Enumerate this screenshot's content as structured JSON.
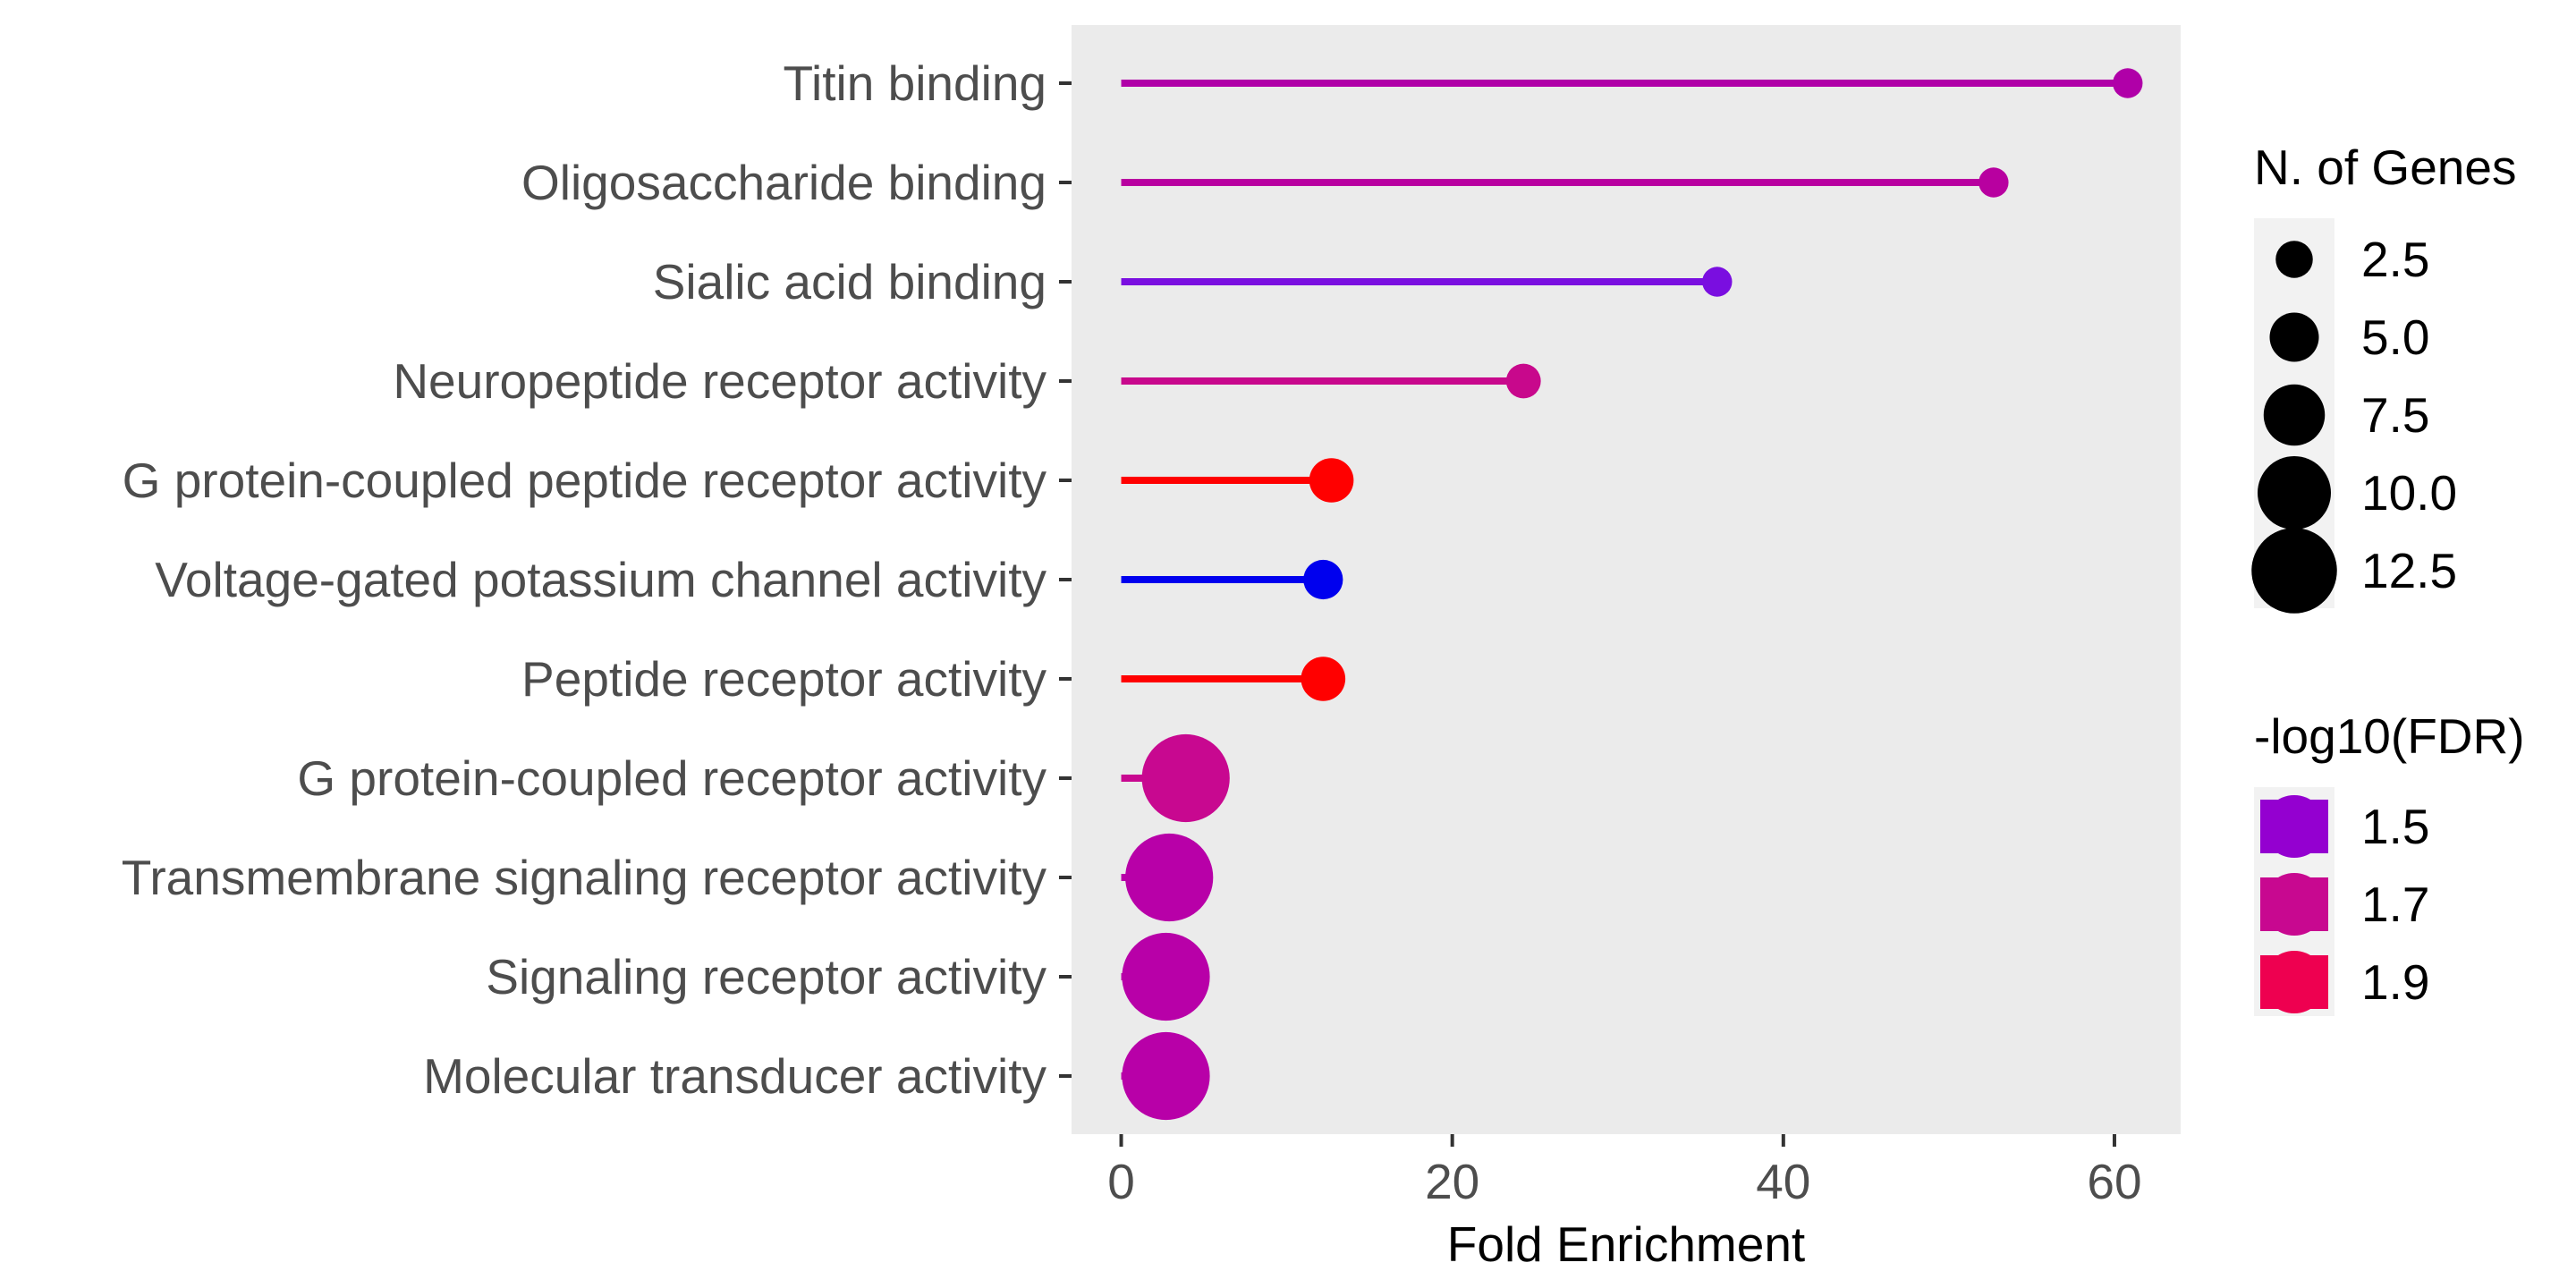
{
  "chart_data": {
    "type": "lollipop",
    "title": "",
    "xlabel": "Fold Enrichment",
    "ylabel": "",
    "xlim": [
      -3,
      64
    ],
    "xticks": [
      0,
      20,
      40,
      60
    ],
    "grid": false,
    "categories": [
      "Titin binding",
      "Oligosaccharide binding",
      "Sialic acid binding",
      "Neuropeptide receptor activity",
      "G protein-coupled peptide receptor activity",
      "Voltage-gated potassium channel activity",
      "Peptide receptor activity",
      "G protein-coupled receptor activity",
      "Transmembrane signaling receptor activity",
      "Signaling receptor activity",
      "Molecular transducer activity"
    ],
    "fold_enrichment": [
      60.8,
      52.7,
      36.0,
      24.3,
      12.7,
      12.2,
      12.2,
      3.9,
      2.9,
      2.7,
      2.7
    ],
    "n_genes": [
      1,
      1,
      1,
      2,
      4,
      3,
      4,
      13,
      13,
      13,
      13
    ],
    "colors": [
      "#b000a8",
      "#b800a0",
      "#7a0ee0",
      "#c8088c",
      "#ff0000",
      "#0000ee",
      "#ff0000",
      "#c80890",
      "#b800a8",
      "#b800a8",
      "#b800a8"
    ],
    "size_legend": {
      "title": "N. of Genes",
      "position": "right",
      "values": [
        2.5,
        5.0,
        7.5,
        10.0,
        12.5
      ],
      "labels": [
        "2.5",
        "5.0",
        "7.5",
        "10.0",
        "12.5"
      ]
    },
    "color_legend": {
      "title": "-log10(FDR)",
      "position": "right",
      "entries": [
        {
          "label": "1.5",
          "color": "#9400d0"
        },
        {
          "label": "1.7",
          "color": "#c80890"
        },
        {
          "label": "1.9",
          "color": "#ee0050"
        }
      ]
    }
  },
  "style": {
    "panel_bg": "#ebebeb",
    "legend_key_bg": "#f2f2f2",
    "tick_color": "#333333"
  }
}
